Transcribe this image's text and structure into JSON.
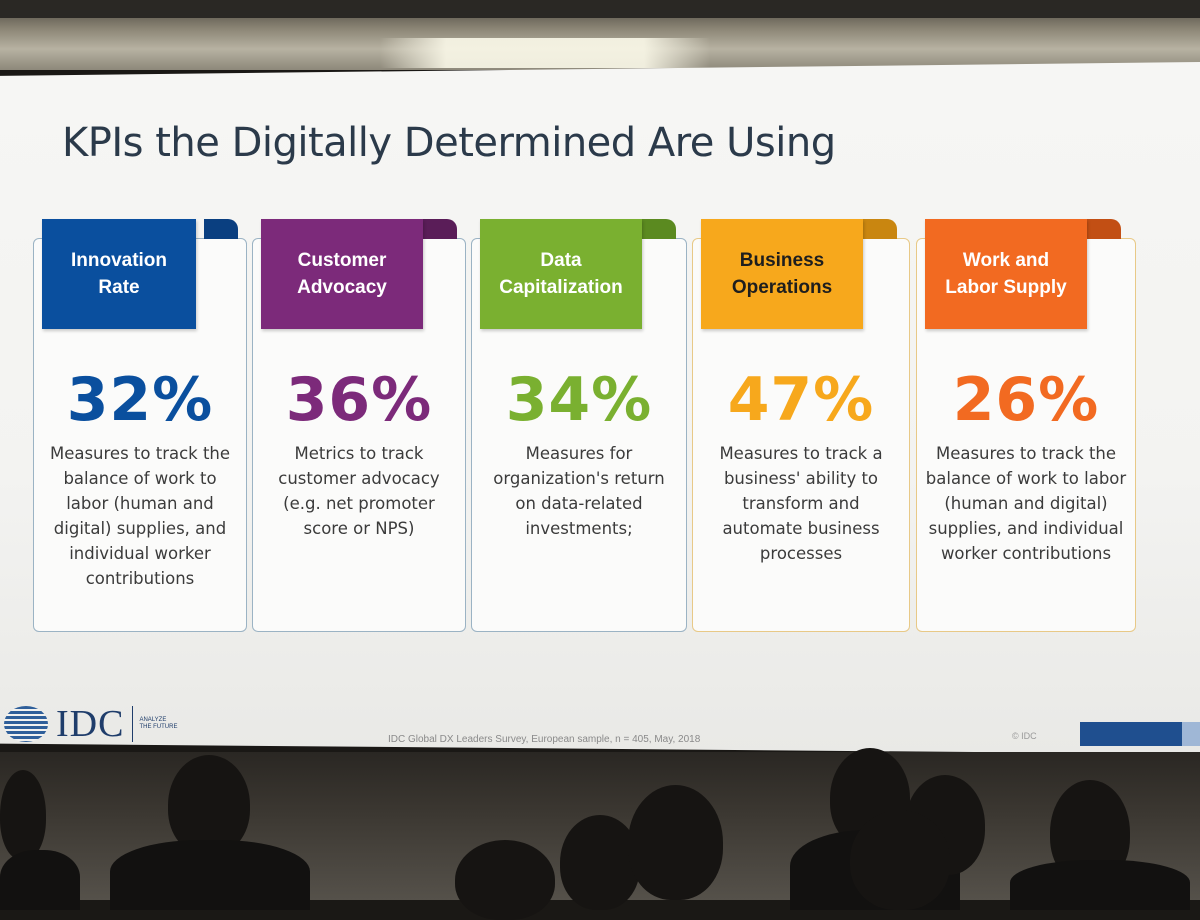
{
  "slide": {
    "title": "KPIs the Digitally Determined Are Using",
    "kpis": [
      {
        "name": "Innovation Rate",
        "value": "32%",
        "description": "Measures to track the balance of work to labor (human and digital) supplies, and individual worker contributions",
        "color": "#0a4f9e"
      },
      {
        "name": "Customer Advocacy",
        "value": "36%",
        "description": "Metrics to track customer advocacy (e.g. net promoter score or NPS)",
        "color": "#7c2a7a"
      },
      {
        "name": "Data Capitalization",
        "value": "34%",
        "description": "Measures for organization's return on data-related investments;",
        "color": "#7ab030"
      },
      {
        "name": "Business Operations",
        "value": "47%",
        "description": "Measures to track a business' ability to transform and automate business processes",
        "color": "#f7a81c"
      },
      {
        "name": "Work and Labor Supply",
        "value": "26%",
        "description": "Measures to track the balance of work to labor (human and digital) supplies, and individual worker contributions",
        "color": "#f26a21"
      }
    ],
    "footer": {
      "logo": "IDC",
      "tagline": "ANALYZE THE FUTURE",
      "source": "IDC Global DX Leaders Survey, European sample, n = 405, May, 2018",
      "copyright": "© IDC"
    }
  }
}
